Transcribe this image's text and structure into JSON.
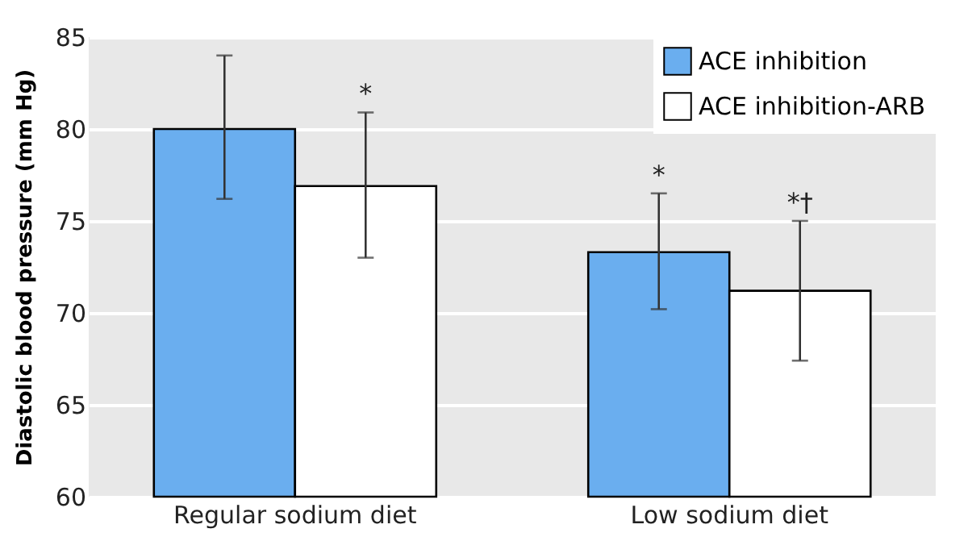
{
  "chart_data": {
    "type": "bar",
    "ylabel": "Diastolic blood pressure (mm Hg)",
    "categories": [
      "Regular sodium diet",
      "Low sodium diet"
    ],
    "series": [
      {
        "name": "ACE inhibition",
        "color": "#6aaeef",
        "values": [
          80.0,
          73.3
        ],
        "value_labels": [
          null,
          "*"
        ],
        "errors": [
          [
            76.2,
            84.0
          ],
          [
            70.2,
            76.5
          ]
        ]
      },
      {
        "name": "ACE inhibition-ARB",
        "color": "#ffffff",
        "values": [
          76.9,
          71.2
        ],
        "value_labels": [
          "*",
          "*†"
        ],
        "errors": [
          [
            73.0,
            80.9
          ],
          [
            67.4,
            75.0
          ]
        ]
      }
    ],
    "ylim": [
      60,
      85
    ],
    "yticks": [
      60,
      65,
      70,
      75,
      80,
      85
    ],
    "grid": "y",
    "legend": "top right"
  }
}
